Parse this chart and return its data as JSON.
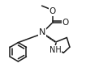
{
  "bg_color": "#ffffff",
  "line_color": "#1a1a1a",
  "lw": 1.1,
  "fs": 6.5,
  "fig_w": 1.22,
  "fig_h": 0.94,
  "dpi": 100,
  "xlim": [
    0,
    12
  ],
  "ylim": [
    0,
    9
  ]
}
